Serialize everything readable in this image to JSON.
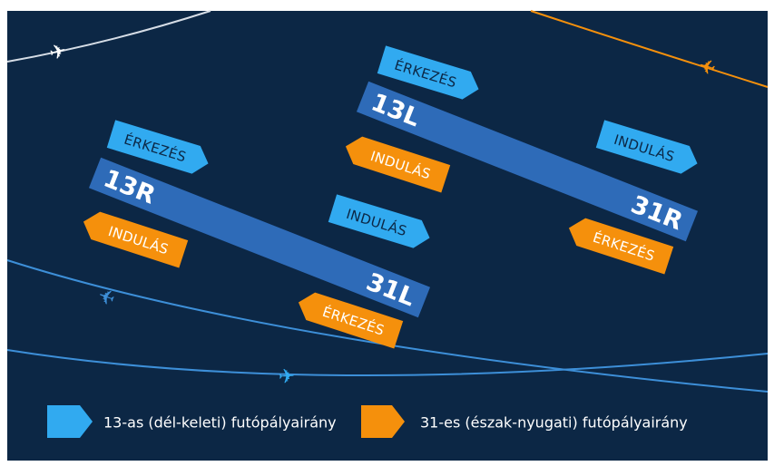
{
  "colors": {
    "background": "#0c2745",
    "runway": "#2e6bb8",
    "runway_dark": "#245c9f",
    "direction_13": "#31aaf0",
    "direction_31": "#f5900c",
    "label_on_13": "#0c2745",
    "label_on_31": "#ffffff",
    "route_white": "#d6dde6",
    "route_orange": "#f5900c",
    "route_blue": "#3d8fd8"
  },
  "icons": {
    "plane": "airplane-icon",
    "plane_glyph": "✈"
  },
  "runways": [
    {
      "id": "left",
      "start_label": "13R",
      "end_label": "31L",
      "arrows": {
        "arrival_13": "ÉRKEZÉS",
        "departure_13": "INDULÁS",
        "departure_31": "INDULÁS",
        "arrival_31": "ÉRKEZÉS"
      }
    },
    {
      "id": "right",
      "start_label": "13L",
      "end_label": "31R",
      "arrows": {
        "arrival_13": "ÉRKEZÉS",
        "departure_13": "INDULÁS",
        "departure_31": "INDULÁS",
        "arrival_31": "ÉRKEZÉS"
      }
    }
  ],
  "legend": [
    {
      "key": "13",
      "label": "13-as (dél-keleti) futópályairány",
      "color": "#31aaf0"
    },
    {
      "key": "31",
      "label": "31-es (észak-nyugati) futópályairány",
      "color": "#f5900c"
    }
  ]
}
